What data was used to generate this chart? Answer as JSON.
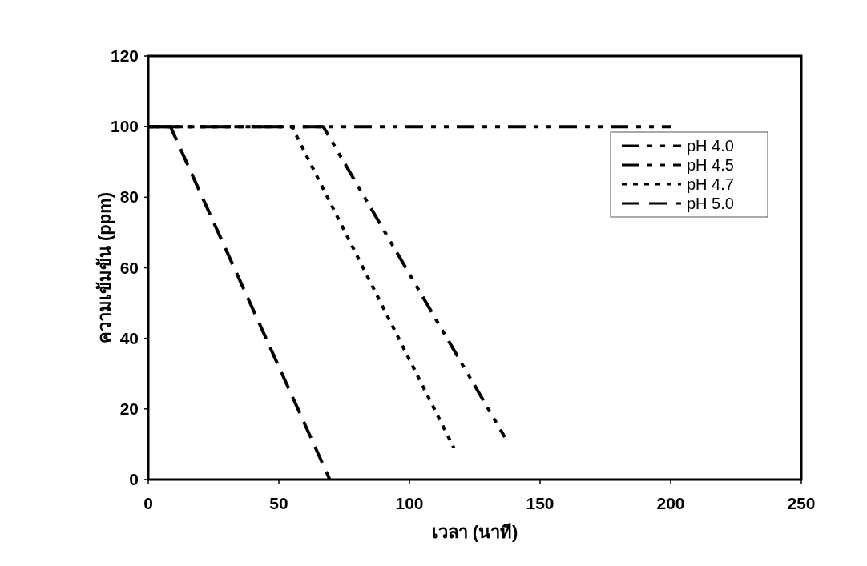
{
  "chart_data": {
    "type": "line",
    "xlabel": "เวลา (นาที)",
    "ylabel": "ความเข้มข้น (ppm)",
    "xlim": [
      0,
      250
    ],
    "xticks": [
      0,
      50,
      100,
      150,
      200,
      250
    ],
    "ylim": [
      0,
      120
    ],
    "yticks": [
      0,
      20,
      40,
      60,
      80,
      100,
      120
    ],
    "grid": false,
    "legend": "top right",
    "marker": "none",
    "series": [
      {
        "name": "pH 4.0",
        "color": "#000000",
        "line_style": "dashdotdot",
        "x": [
          0,
          200
        ],
        "values": [
          100,
          100
        ]
      },
      {
        "name": "pH 4.5",
        "color": "#000000",
        "line_style": "dashdotdot",
        "x": [
          0,
          67,
          136.5
        ],
        "values": [
          100,
          100,
          12
        ]
      },
      {
        "name": "pH 4.7",
        "color": "#000000",
        "line_style": "dotted",
        "x": [
          0,
          55,
          117
        ],
        "values": [
          100,
          100,
          9
        ]
      },
      {
        "name": "pH 5.0",
        "color": "#000000",
        "line_style": "dashed",
        "x": [
          0,
          8.5,
          69.5
        ],
        "values": [
          100,
          100,
          0
        ]
      }
    ]
  }
}
